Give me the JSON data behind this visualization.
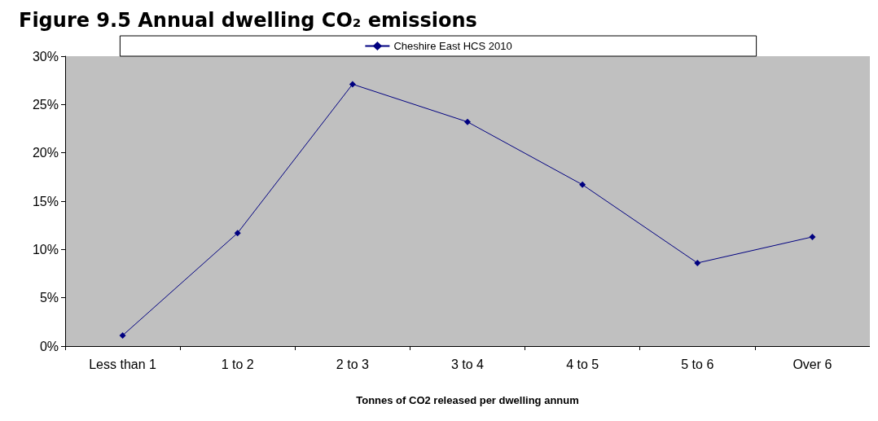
{
  "chart_data": {
    "type": "line",
    "title": "Figure 9.5 Annual dwelling CO₂ emissions",
    "xlabel": "Tonnes of CO2 released per dwelling annum",
    "categories": [
      "Less than 1",
      "1 to 2",
      "2 to 3",
      "3 to 4",
      "4 to 5",
      "5 to 6",
      "Over 6"
    ],
    "series": [
      {
        "name": "Cheshire East HCS 2010",
        "color": "#000080",
        "values": [
          1.1,
          11.7,
          27.1,
          23.2,
          16.7,
          8.6,
          11.3
        ]
      }
    ],
    "ylim": [
      0,
      30
    ],
    "yticks": [
      {
        "value": 0,
        "label": "0%"
      },
      {
        "value": 5,
        "label": "5%"
      },
      {
        "value": 10,
        "label": "10%"
      },
      {
        "value": 15,
        "label": "15%"
      },
      {
        "value": 20,
        "label": "20%"
      },
      {
        "value": 25,
        "label": "25%"
      },
      {
        "value": 30,
        "label": "30%"
      }
    ],
    "grid": false,
    "legend": "top",
    "marker": "diamond",
    "line_style": "solid"
  }
}
